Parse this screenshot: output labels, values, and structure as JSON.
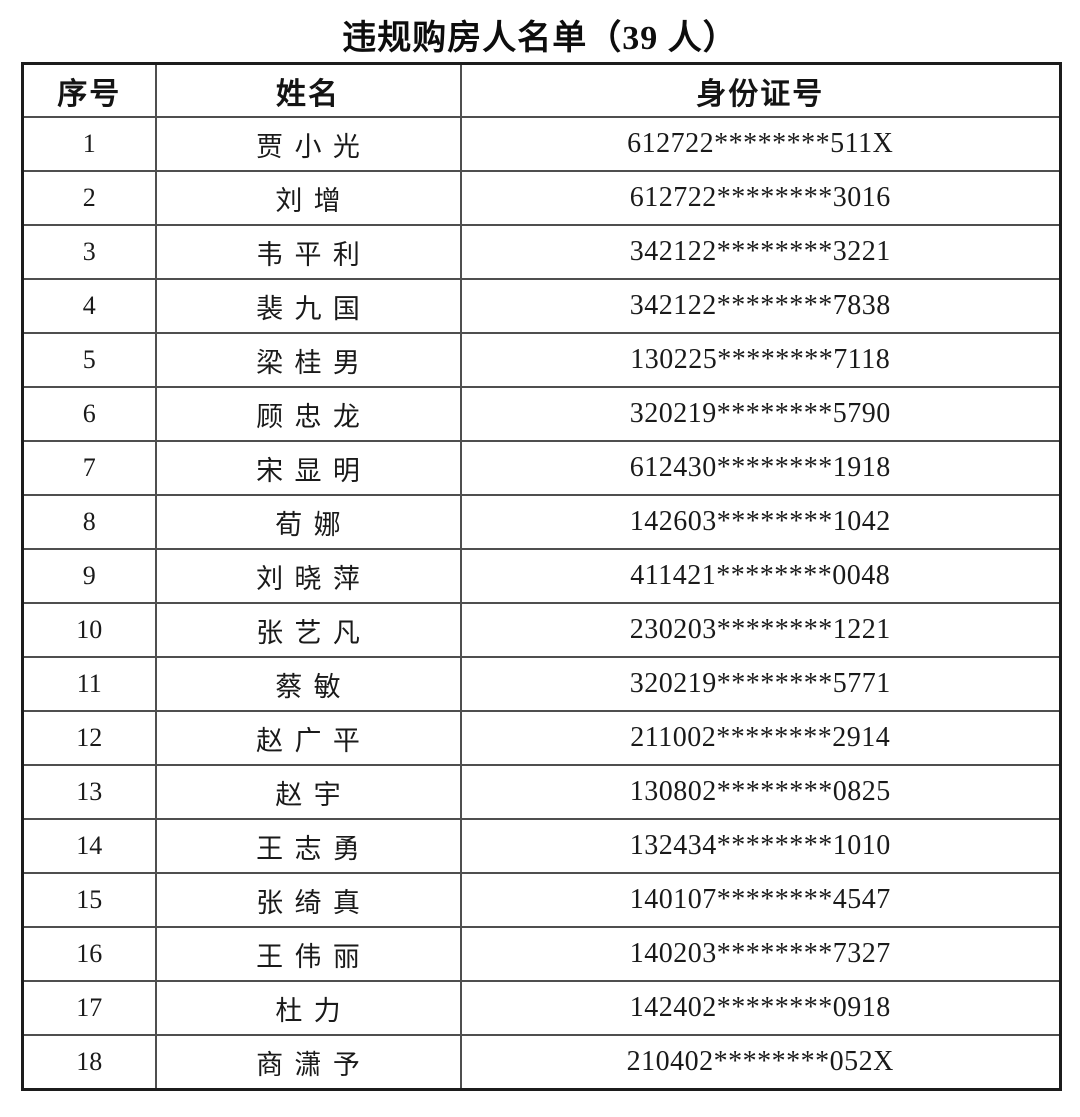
{
  "page": {
    "title": "违规购房人名单（39 人）"
  },
  "table": {
    "headers": [
      "序号",
      "姓名",
      "身份证号"
    ],
    "rows": [
      {
        "no": "1",
        "name": "贾小光",
        "id": "612722********511X"
      },
      {
        "no": "2",
        "name": "刘增",
        "id": "612722********3016"
      },
      {
        "no": "3",
        "name": "韦平利",
        "id": "342122********3221"
      },
      {
        "no": "4",
        "name": "裴九国",
        "id": "342122********7838"
      },
      {
        "no": "5",
        "name": "梁桂男",
        "id": "130225********7118"
      },
      {
        "no": "6",
        "name": "顾忠龙",
        "id": "320219********5790"
      },
      {
        "no": "7",
        "name": "宋显明",
        "id": "612430********1918"
      },
      {
        "no": "8",
        "name": "荀娜",
        "id": "142603********1042"
      },
      {
        "no": "9",
        "name": "刘晓萍",
        "id": "411421********0048"
      },
      {
        "no": "10",
        "name": "张艺凡",
        "id": "230203********1221"
      },
      {
        "no": "11",
        "name": "蔡敏",
        "id": "320219********5771"
      },
      {
        "no": "12",
        "name": "赵广平",
        "id": "211002********2914"
      },
      {
        "no": "13",
        "name": "赵宇",
        "id": "130802********0825"
      },
      {
        "no": "14",
        "name": "王志勇",
        "id": "132434********1010"
      },
      {
        "no": "15",
        "name": "张绮真",
        "id": "140107********4547"
      },
      {
        "no": "16",
        "name": "王伟丽",
        "id": "140203********7327"
      },
      {
        "no": "17",
        "name": "杜力",
        "id": "142402********0918"
      },
      {
        "no": "18",
        "name": "商潇予",
        "id": "210402********052X"
      }
    ]
  }
}
